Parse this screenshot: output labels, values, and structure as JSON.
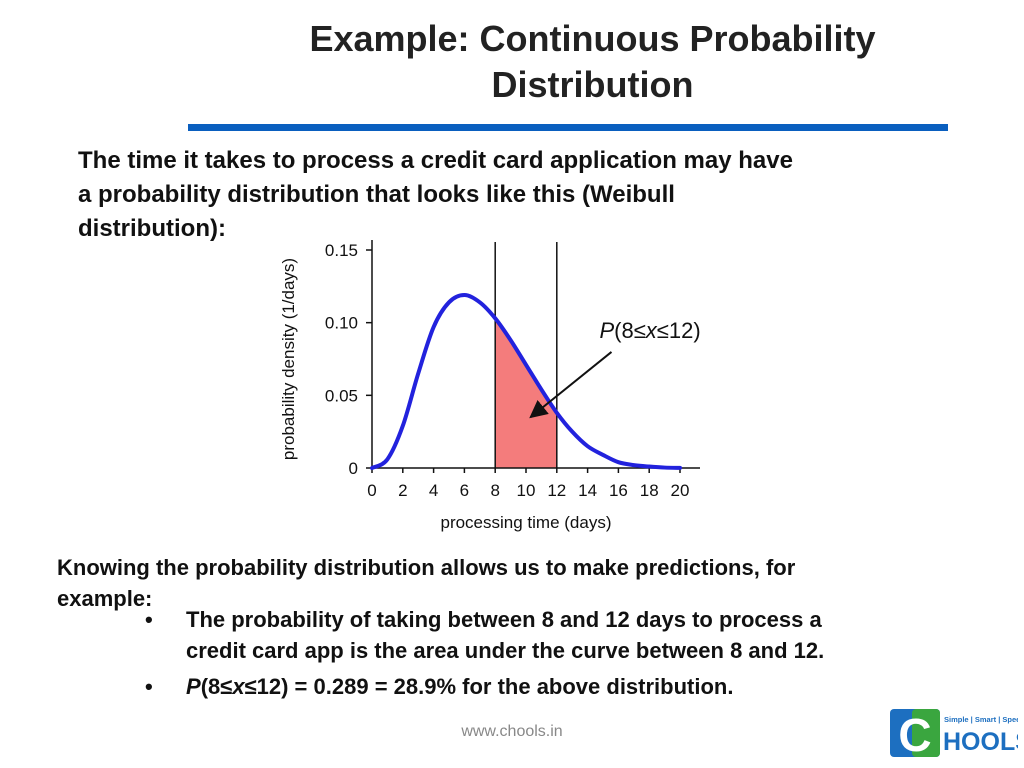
{
  "slide": {
    "title_lines": [
      "Example:  Continuous Probability",
      "Distribution"
    ],
    "intro_lines": [
      "The time it takes to process a credit card application may have",
      "a probability distribution that looks like this (Weibull",
      "distribution):"
    ],
    "knowing_lines": [
      "Knowing the probability distribution allows us to make predictions, for",
      "example:"
    ],
    "bullet_marker": "•",
    "bullet1_lines": [
      "The probability of taking between 8 and 12 days to process a",
      "credit card app is the area under the curve between 8 and 12."
    ],
    "bullet2": {
      "p": "P",
      "open": "(8≤",
      "x": "x",
      "rest": "≤12) = 0.289 = 28.9%  for the above distribution."
    },
    "footer": "www.chools.in",
    "logo": {
      "tagline": "Simple | Smart | Speed",
      "letter": "C",
      "word": "HOOLS"
    }
  },
  "colors": {
    "curve": "#2222dd",
    "fill": "#f47c7c",
    "rule": "#0a5fbf"
  },
  "chart_data": {
    "type": "area",
    "xlabel": "processing time (days)",
    "ylabel": "probability density (1/days)",
    "xlim": [
      0,
      20
    ],
    "ylim": [
      0,
      0.15
    ],
    "x_ticks": [
      "0",
      "2",
      "4",
      "6",
      "8",
      "10",
      "12",
      "14",
      "16",
      "18",
      "20"
    ],
    "y_ticks": [
      "0",
      "0.05",
      "0.10",
      "0.15"
    ],
    "grid": false,
    "curve": {
      "x": [
        0,
        1,
        2,
        3,
        4,
        5,
        6,
        7,
        8,
        9,
        10,
        11,
        12,
        13,
        14,
        15,
        16,
        17,
        18,
        19,
        20
      ],
      "y": [
        0,
        0.006,
        0.029,
        0.065,
        0.097,
        0.114,
        0.119,
        0.114,
        0.103,
        0.088,
        0.071,
        0.054,
        0.038,
        0.025,
        0.015,
        0.009,
        0.004,
        0.002,
        0.001,
        0.0003,
        0.0001
      ]
    },
    "shaded_interval": [
      8,
      12
    ],
    "annotation": {
      "p": "P",
      "open": "(8≤",
      "x": "x",
      "close": "≤12)",
      "points_to": [
        10.3,
        0.035
      ],
      "text_at": [
        16.2,
        0.095
      ]
    }
  }
}
